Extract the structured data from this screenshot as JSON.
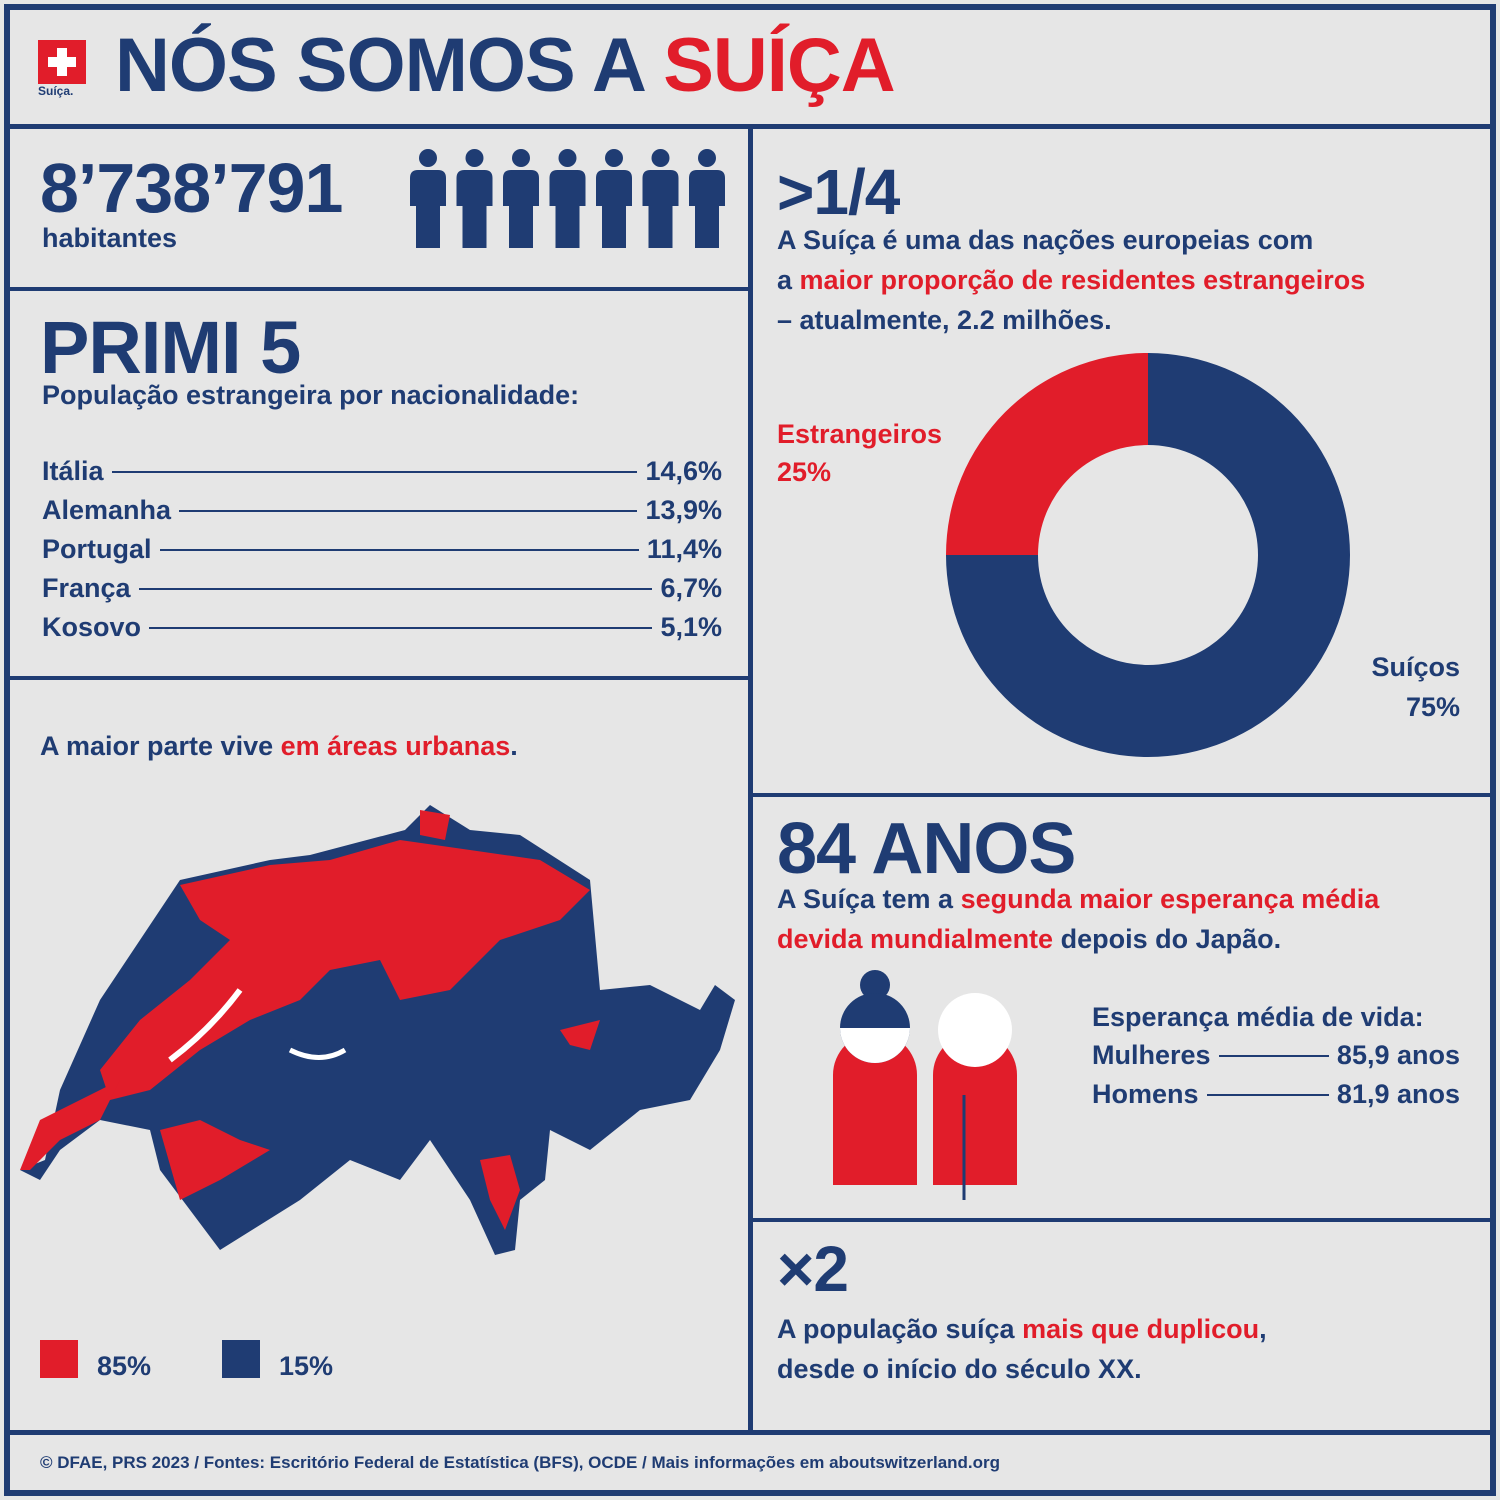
{
  "header": {
    "logo_text": "Suíça.",
    "title": [
      {
        "text": "NÓS SOMOS A "
      },
      {
        "text": "SUÍÇA",
        "highlight": true
      }
    ]
  },
  "population": {
    "number": "8’738’791",
    "label": "habitantes"
  },
  "top5": {
    "title": "PRIMI 5",
    "subtitle": "População estrangeira por nacionalidade:",
    "rows": [
      {
        "country": "Itália",
        "share": "14,6%"
      },
      {
        "country": "Alemanha",
        "share": "13,9%"
      },
      {
        "country": "Portugal",
        "share": "11,4%"
      },
      {
        "country": "França",
        "share": "6,7%"
      },
      {
        "country": "Kosovo",
        "share": "5,1%"
      }
    ]
  },
  "urban": {
    "text": [
      {
        "text": "A maior parte vive "
      },
      {
        "text": "em áreas urbanas",
        "highlight": true
      },
      {
        "text": "."
      }
    ],
    "legend": [
      {
        "label": "85%",
        "color": "#e11d2a"
      },
      {
        "label": "15%",
        "color": "#1f3c73"
      }
    ]
  },
  "foreigners": {
    "headline": ">1/4",
    "lines": [
      [
        {
          "text": "A Suíça é uma das nações europeias com"
        }
      ],
      [
        {
          "text": "a "
        },
        {
          "text": "maior proporção de residentes estrangeiros",
          "highlight": true
        }
      ],
      [
        {
          "text": "– atualmente, 2.2 milhões."
        }
      ]
    ],
    "donut": {
      "segments": [
        {
          "name": "Estrangeiros",
          "value": 25,
          "value_label": "25%",
          "color": "#e11d2a"
        },
        {
          "name": "Suíços",
          "value": 75,
          "value_label": "75%",
          "color": "#1f3c73"
        }
      ]
    }
  },
  "life": {
    "headline": "84 ANOS",
    "lines": [
      [
        {
          "text": "A Suíça tem a "
        },
        {
          "text": "segunda maior esperança média",
          "highlight": true
        }
      ],
      [
        {
          "text": "devida mundialmente",
          "highlight": true
        },
        {
          "text": " depois do Japão."
        }
      ]
    ],
    "table_title": "Esperança média de vida:",
    "rows": [
      {
        "label": "Mulheres",
        "value": "85,9 anos"
      },
      {
        "label": "Homens",
        "value": "81,9 anos"
      }
    ]
  },
  "growth": {
    "headline": "×2",
    "lines": [
      [
        {
          "text": "A população suíça "
        },
        {
          "text": "mais que duplicou",
          "highlight": true
        },
        {
          "text": ","
        }
      ],
      [
        {
          "text": "desde o início do século XX."
        }
      ]
    ]
  },
  "footer": "© DFAE, PRS 2023 / Fontes: Escritório Federal de Estatística (BFS), OCDE / Mais informações em aboutswitzerland.org"
}
